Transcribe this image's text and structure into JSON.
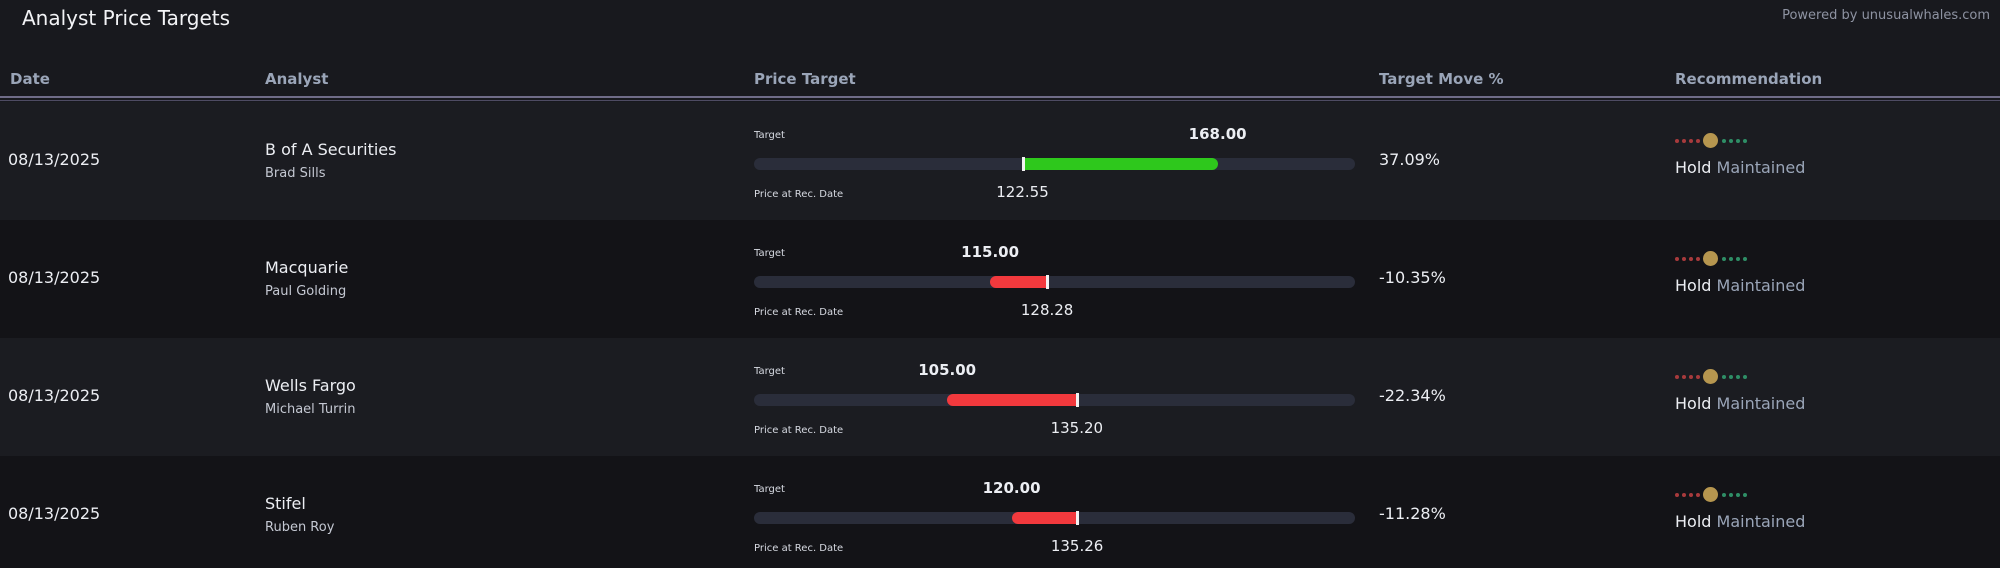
{
  "header": {
    "title": "Analyst Price Targets",
    "powered_by": "Powered by unusualwhales.com"
  },
  "columns": {
    "date": "Date",
    "analyst": "Analyst",
    "price_target": "Price Target",
    "target_move": "Target Move %",
    "recommendation": "Recommendation"
  },
  "labels": {
    "target": "Target",
    "price_at_rec": "Price at Rec. Date"
  },
  "colors": {
    "up": "#2ec81c",
    "down": "#f2393d",
    "neutral_dot": "#b6964f"
  },
  "rows": [
    {
      "date": "08/13/2025",
      "firm": "B of A Securities",
      "analyst": "Brad Sills",
      "target": "168.00",
      "price_at_rec": "122.55",
      "move": "37.09%",
      "rec_action": "Hold",
      "rec_status": "Maintained"
    },
    {
      "date": "08/13/2025",
      "firm": "Macquarie",
      "analyst": "Paul Golding",
      "target": "115.00",
      "price_at_rec": "128.28",
      "move": "-10.35%",
      "rec_action": "Hold",
      "rec_status": "Maintained"
    },
    {
      "date": "08/13/2025",
      "firm": "Wells Fargo",
      "analyst": "Michael Turrin",
      "target": "105.00",
      "price_at_rec": "135.20",
      "move": "-22.34%",
      "rec_action": "Hold",
      "rec_status": "Maintained"
    },
    {
      "date": "08/13/2025",
      "firm": "Stifel",
      "analyst": "Ruben Roy",
      "target": "120.00",
      "price_at_rec": "135.26",
      "move": "-11.28%",
      "rec_action": "Hold",
      "rec_status": "Maintained"
    }
  ]
}
